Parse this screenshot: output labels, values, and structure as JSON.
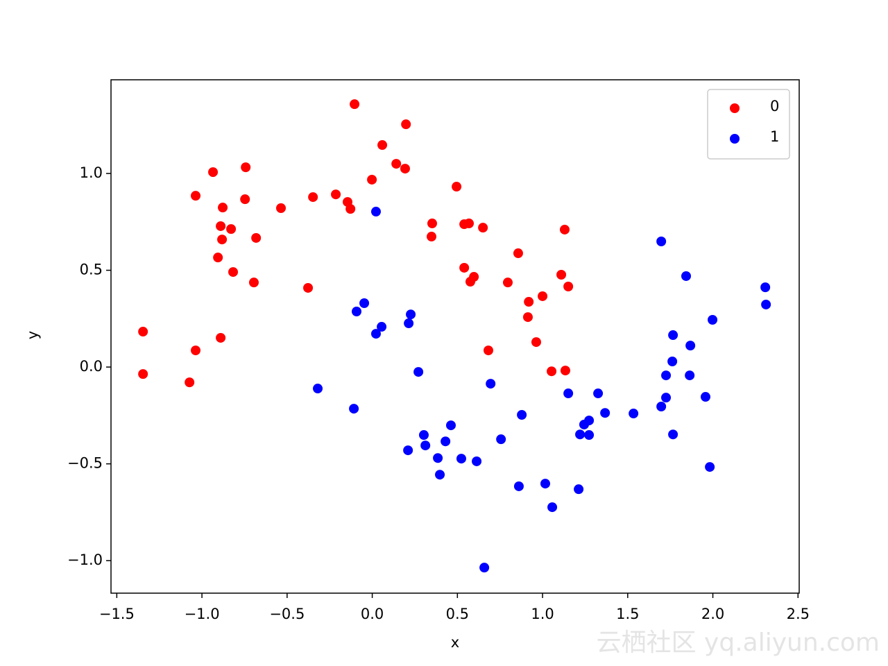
{
  "chart_data": {
    "type": "scatter",
    "xlabel": "x",
    "ylabel": "y",
    "xlim": [
      -1.534,
      2.507
    ],
    "ylim": [
      -1.168,
      1.484
    ],
    "xticks": [
      {
        "value": -1.5,
        "label": "−1.5"
      },
      {
        "value": -1.0,
        "label": "−1.0"
      },
      {
        "value": -0.5,
        "label": "−0.5"
      },
      {
        "value": 0,
        "label": "0.0"
      },
      0.5,
      {
        "value": 1,
        "label": "1.0"
      },
      1.5,
      {
        "value": 2,
        "label": "2.0"
      },
      2.5
    ],
    "yticks": [
      {
        "value": -1.0,
        "label": "−1.0"
      },
      {
        "value": -0.5,
        "label": "−0.5"
      },
      {
        "value": 0,
        "label": "0.0"
      },
      0.5,
      {
        "value": 1,
        "label": "1.0"
      }
    ],
    "legend": "upper right",
    "series": [
      {
        "name": "0",
        "color": "#ff0000",
        "x": [
          -0.104,
          0.198,
          0.059,
          0.141,
          0.193,
          -0.743,
          -0.935,
          -0.002,
          0.495,
          -1.037,
          -0.214,
          -0.348,
          -0.747,
          -0.145,
          -0.128,
          -0.536,
          -0.878,
          -0.89,
          -0.829,
          0.352,
          0.54,
          0.568,
          0.65,
          1.13,
          0.348,
          -0.682,
          -0.882,
          0.857,
          -0.906,
          0.54,
          -0.817,
          0.597,
          1.11,
          0.576,
          -0.695,
          0.796,
          1.151,
          -0.377,
          1.0,
          0.919,
          0.914,
          -1.346,
          -0.89,
          0.963,
          -1.037,
          0.682,
          1.053,
          1.134,
          -1.346,
          -1.073
        ],
        "y": [
          1.358,
          1.254,
          1.147,
          1.05,
          1.025,
          1.032,
          1.007,
          0.968,
          0.932,
          0.885,
          0.892,
          0.878,
          0.867,
          0.853,
          0.817,
          0.821,
          0.824,
          0.728,
          0.713,
          0.742,
          0.738,
          0.742,
          0.72,
          0.71,
          0.674,
          0.667,
          0.659,
          0.588,
          0.566,
          0.513,
          0.491,
          0.466,
          0.477,
          0.441,
          0.437,
          0.437,
          0.416,
          0.409,
          0.366,
          0.337,
          0.258,
          0.183,
          0.151,
          0.129,
          0.086,
          0.086,
          -0.022,
          -0.018,
          -0.036,
          -0.079
        ]
      },
      {
        "name": "1",
        "color": "#0000ff",
        "x": [
          1.697,
          0.022,
          1.843,
          2.308,
          2.312,
          -0.047,
          -0.092,
          0.226,
          1.998,
          0.055,
          0.214,
          0.022,
          1.766,
          1.868,
          1.762,
          0.271,
          1.725,
          1.864,
          0.695,
          -0.32,
          1.151,
          1.326,
          1.725,
          1.957,
          1.697,
          -0.108,
          1.367,
          1.534,
          0.878,
          1.273,
          1.244,
          0.462,
          1.22,
          1.273,
          1.766,
          0.303,
          0.756,
          0.43,
          0.312,
          0.21,
          0.385,
          0.523,
          0.613,
          1.982,
          0.397,
          1.016,
          0.861,
          1.212,
          1.057,
          0.658
        ],
        "y": [
          0.649,
          0.803,
          0.47,
          0.412,
          0.323,
          0.33,
          0.287,
          0.272,
          0.244,
          0.208,
          0.226,
          0.172,
          0.165,
          0.111,
          0.029,
          -0.025,
          -0.043,
          -0.043,
          -0.086,
          -0.111,
          -0.136,
          -0.136,
          -0.158,
          -0.154,
          -0.204,
          -0.215,
          -0.237,
          -0.24,
          -0.247,
          -0.276,
          -0.297,
          -0.301,
          -0.348,
          -0.351,
          -0.348,
          -0.351,
          -0.373,
          -0.384,
          -0.405,
          -0.43,
          -0.47,
          -0.473,
          -0.487,
          -0.516,
          -0.556,
          -0.602,
          -0.616,
          -0.631,
          -0.724,
          -1.036
        ]
      }
    ]
  },
  "watermark": "云栖社区 yq.aliyun.com"
}
